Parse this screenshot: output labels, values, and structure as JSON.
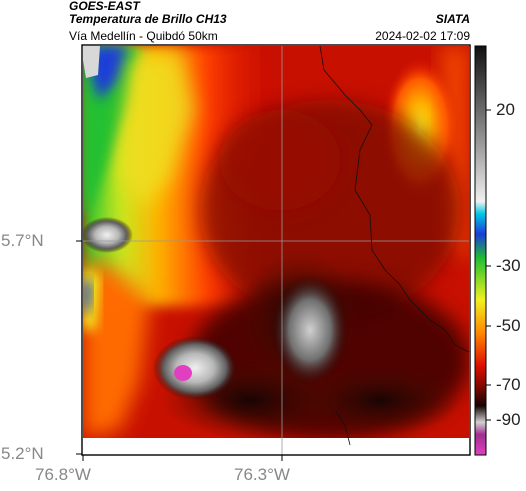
{
  "header": {
    "satellite": "GOES-EAST",
    "product": "Temperatura de Brillo CH13",
    "route": "Vía Medellín - Quibdó 50km",
    "agency": "SIATA",
    "datetime": "2024-02-02 17:09"
  },
  "axes": {
    "y_ticks": [
      "5.7°N",
      "5.2°N"
    ],
    "x_ticks": [
      "76.8°W",
      "76.3°W"
    ]
  },
  "colorbar": {
    "ticks": [
      "20",
      "-30",
      "-50",
      "-70",
      "-90"
    ],
    "colors": {
      "warm_gray": "#d8d8d8",
      "cyan": "#00c8e6",
      "blue": "#1a3cd8",
      "green": "#20c030",
      "yellow": "#f0f020",
      "orange": "#ff8a00",
      "red": "#e01000",
      "dark_red": "#700800",
      "black": "#140404",
      "magenta": "#e040c0"
    }
  },
  "map": {
    "layer": "brightness-temperature",
    "overlays": [
      "gridlines",
      "department-borders"
    ]
  }
}
